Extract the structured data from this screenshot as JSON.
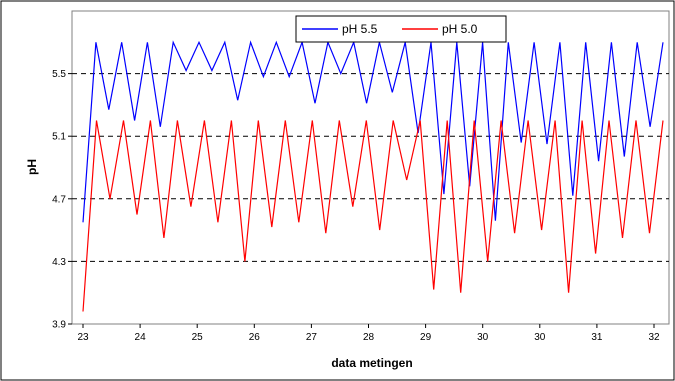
{
  "chart_data": {
    "type": "line",
    "title": "",
    "xlabel": "data metingen",
    "ylabel": "pH",
    "ylim": [
      3.9,
      5.9
    ],
    "y_ticks": [
      "3.9",
      "4.3",
      "4.7",
      "5.1",
      "5.5"
    ],
    "y_tick_values": [
      3.9,
      4.3,
      4.7,
      5.1,
      5.5
    ],
    "x_ticks": [
      "23",
      "24",
      "25",
      "26",
      "27",
      "28",
      "29",
      "30",
      "30",
      "31",
      "32"
    ],
    "dashed_reference_lines": [
      4.3,
      4.7,
      5.1,
      5.5
    ],
    "grid": false,
    "legend_position": "top",
    "series": [
      {
        "name": "pH 5.5",
        "color": "#0000ff",
        "values": [
          4.55,
          5.7,
          5.27,
          5.7,
          5.2,
          5.7,
          5.16,
          5.7,
          5.52,
          5.7,
          5.52,
          5.7,
          5.33,
          5.7,
          5.48,
          5.7,
          5.48,
          5.7,
          5.31,
          5.7,
          5.5,
          5.7,
          5.31,
          5.7,
          5.38,
          5.7,
          5.12,
          5.7,
          4.73,
          5.7,
          4.78,
          5.7,
          4.56,
          5.7,
          5.06,
          5.7,
          5.05,
          5.7,
          4.72,
          5.7,
          4.94,
          5.7,
          4.97,
          5.7,
          5.16,
          5.7
        ]
      },
      {
        "name": "pH 5.0",
        "color": "#ff0000",
        "values": [
          3.98,
          5.2,
          4.7,
          5.2,
          4.6,
          5.2,
          4.45,
          5.2,
          4.65,
          5.2,
          4.55,
          5.2,
          4.3,
          5.2,
          4.52,
          5.2,
          4.55,
          5.2,
          4.48,
          5.2,
          4.65,
          5.2,
          4.5,
          5.2,
          4.82,
          5.2,
          4.12,
          5.2,
          4.1,
          5.2,
          4.3,
          5.2,
          4.48,
          5.2,
          4.5,
          5.2,
          4.1,
          5.2,
          4.35,
          5.2,
          4.45,
          5.2,
          4.48,
          5.2
        ]
      }
    ]
  }
}
